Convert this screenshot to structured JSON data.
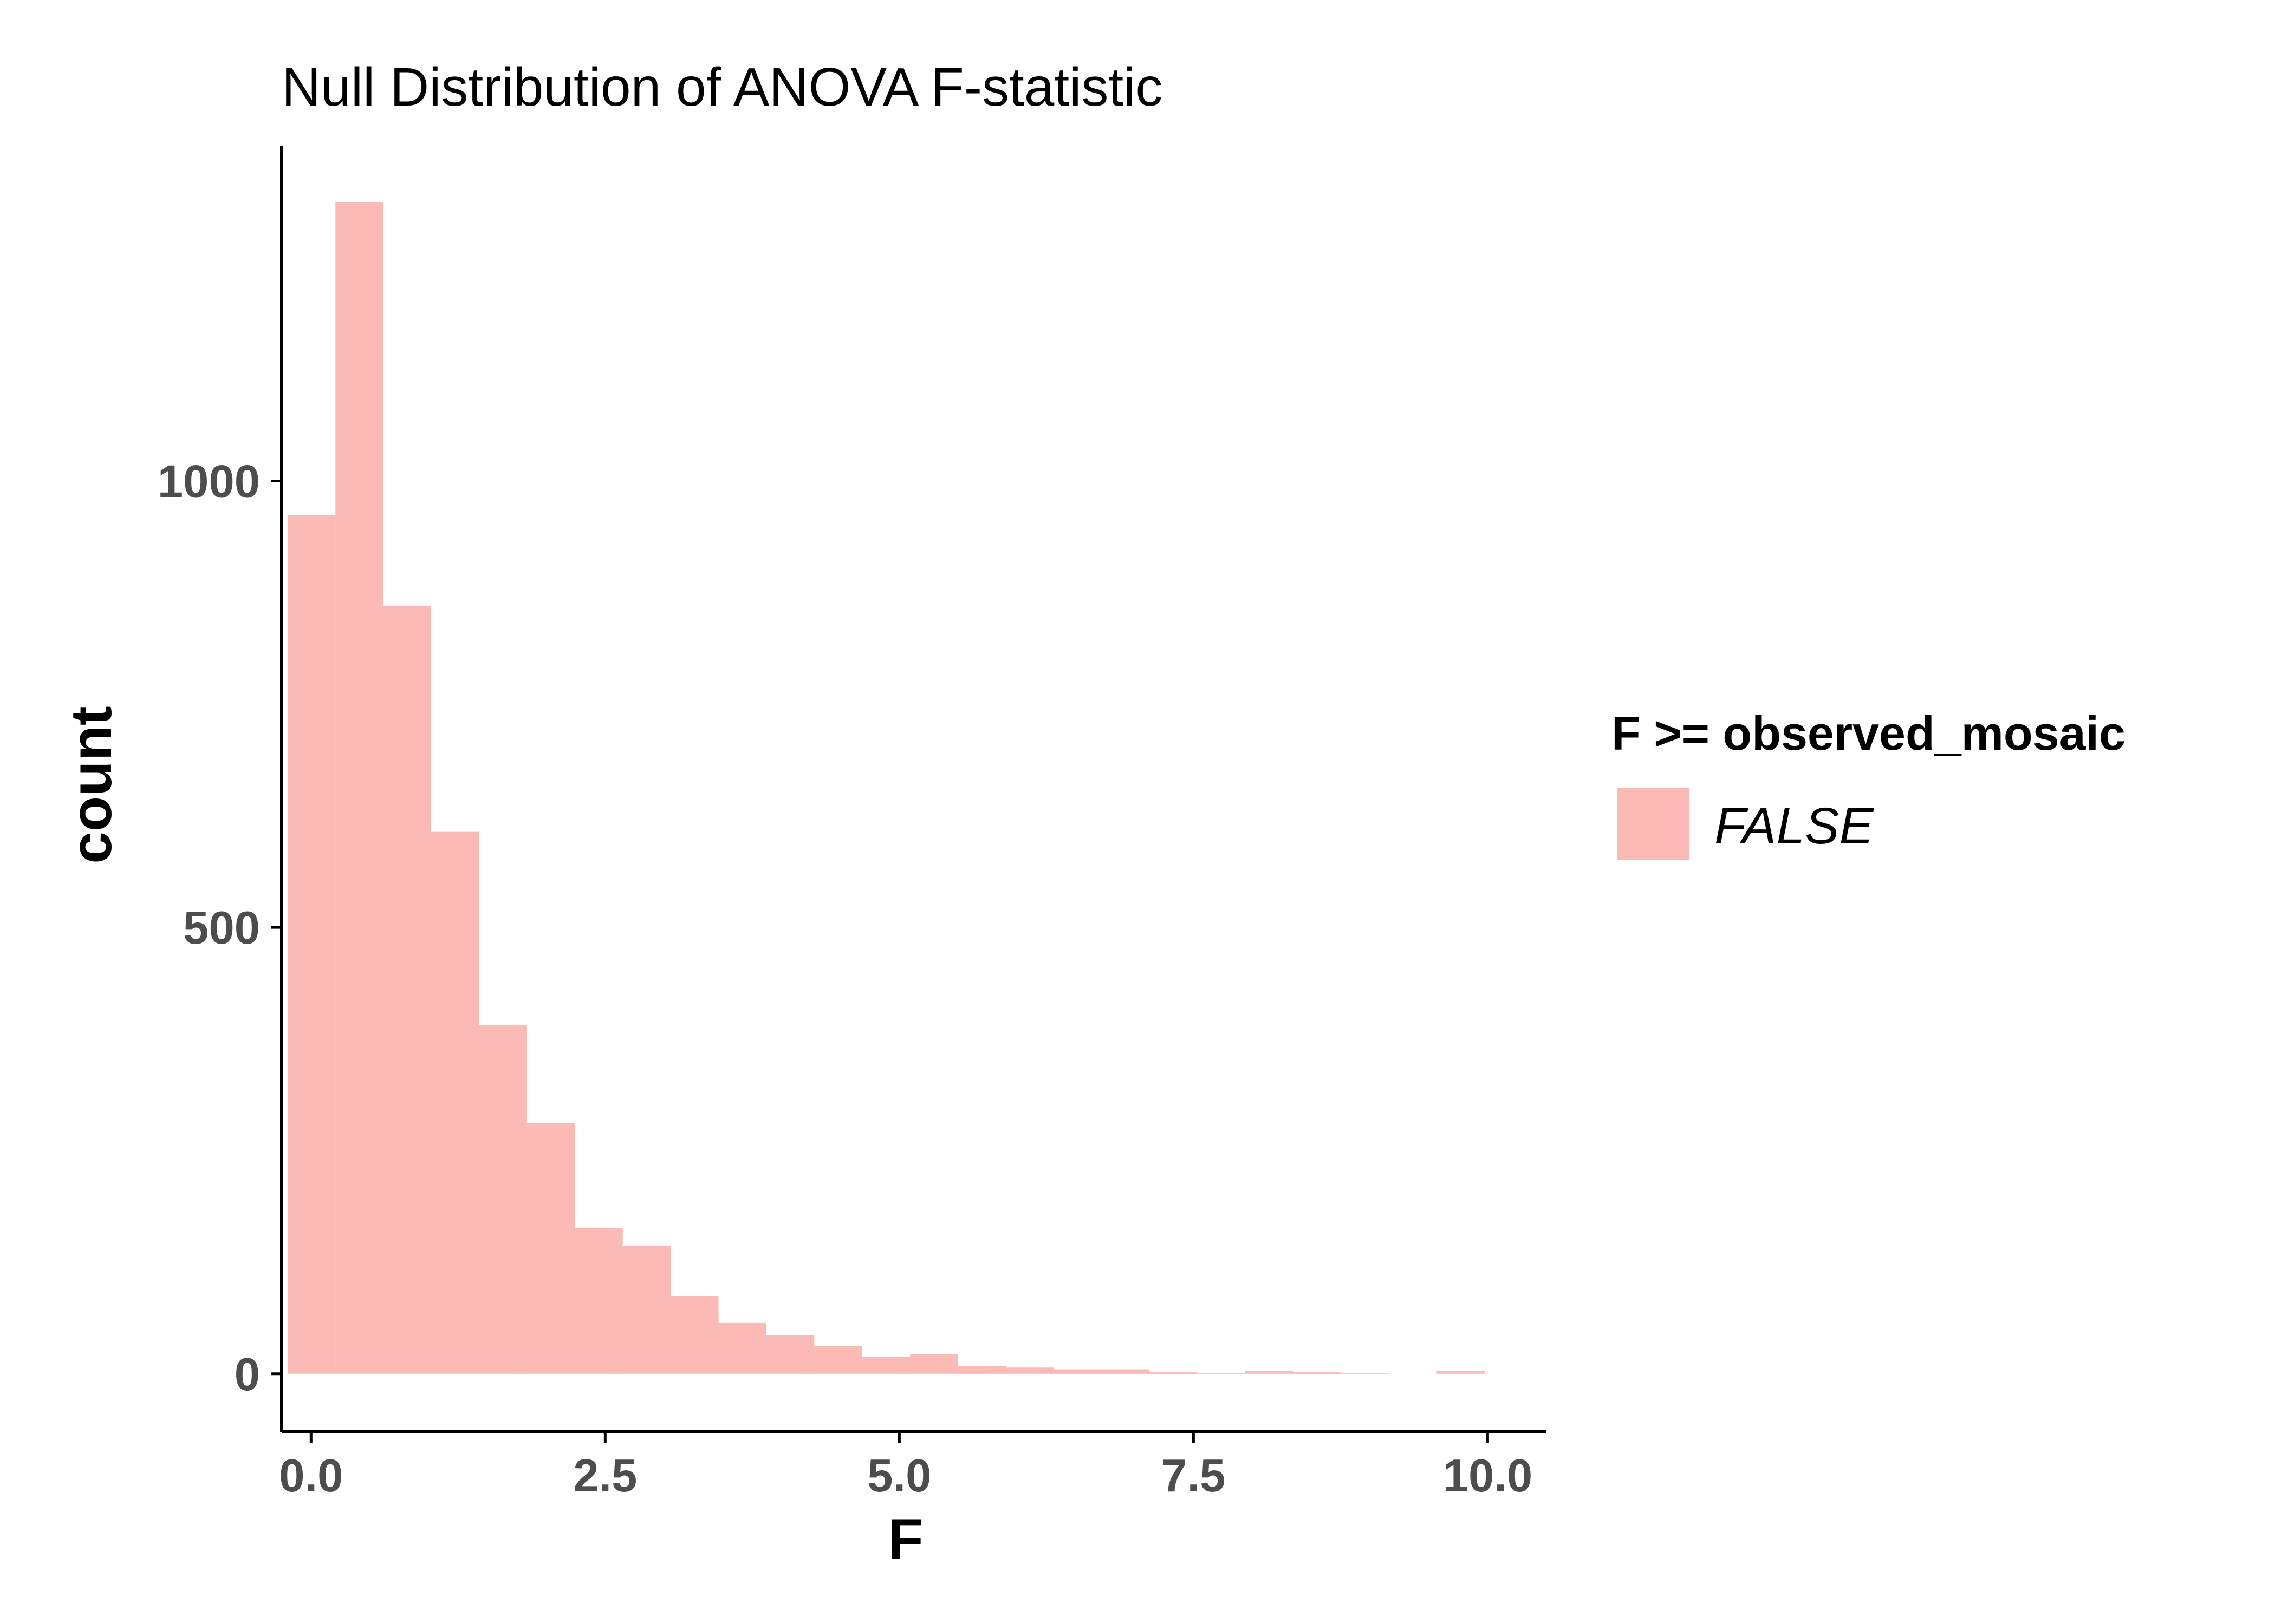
{
  "chart_data": {
    "type": "bar",
    "title": "Null Distribution of ANOVA F-statistic",
    "xlabel": "F",
    "ylabel": "count",
    "xlim": [
      -0.25,
      10.5
    ],
    "ylim": [
      -65,
      1375
    ],
    "x_ticks": [
      0.0,
      2.5,
      5.0,
      7.5,
      10.0
    ],
    "x_tick_labels": [
      "0.0",
      "2.5",
      "5.0",
      "7.5",
      "10.0"
    ],
    "y_ticks": [
      0,
      500,
      1000
    ],
    "y_tick_labels": [
      "0",
      "500",
      "1000"
    ],
    "bin_width": 0.407,
    "bin_start": -0.2,
    "counts": [
      962,
      1312,
      860,
      607,
      391,
      281,
      163,
      143,
      87,
      57,
      43,
      31,
      19,
      22,
      9,
      7,
      5,
      5,
      2,
      1,
      3,
      2,
      1,
      0,
      3
    ],
    "fill_color": "#f8766d",
    "fill_opacity": 0.5,
    "grid": false,
    "legend": {
      "title": "F >= observed_mosaic",
      "position": "right",
      "items": [
        {
          "label": "FALSE",
          "color": "#f8766d"
        }
      ]
    }
  }
}
